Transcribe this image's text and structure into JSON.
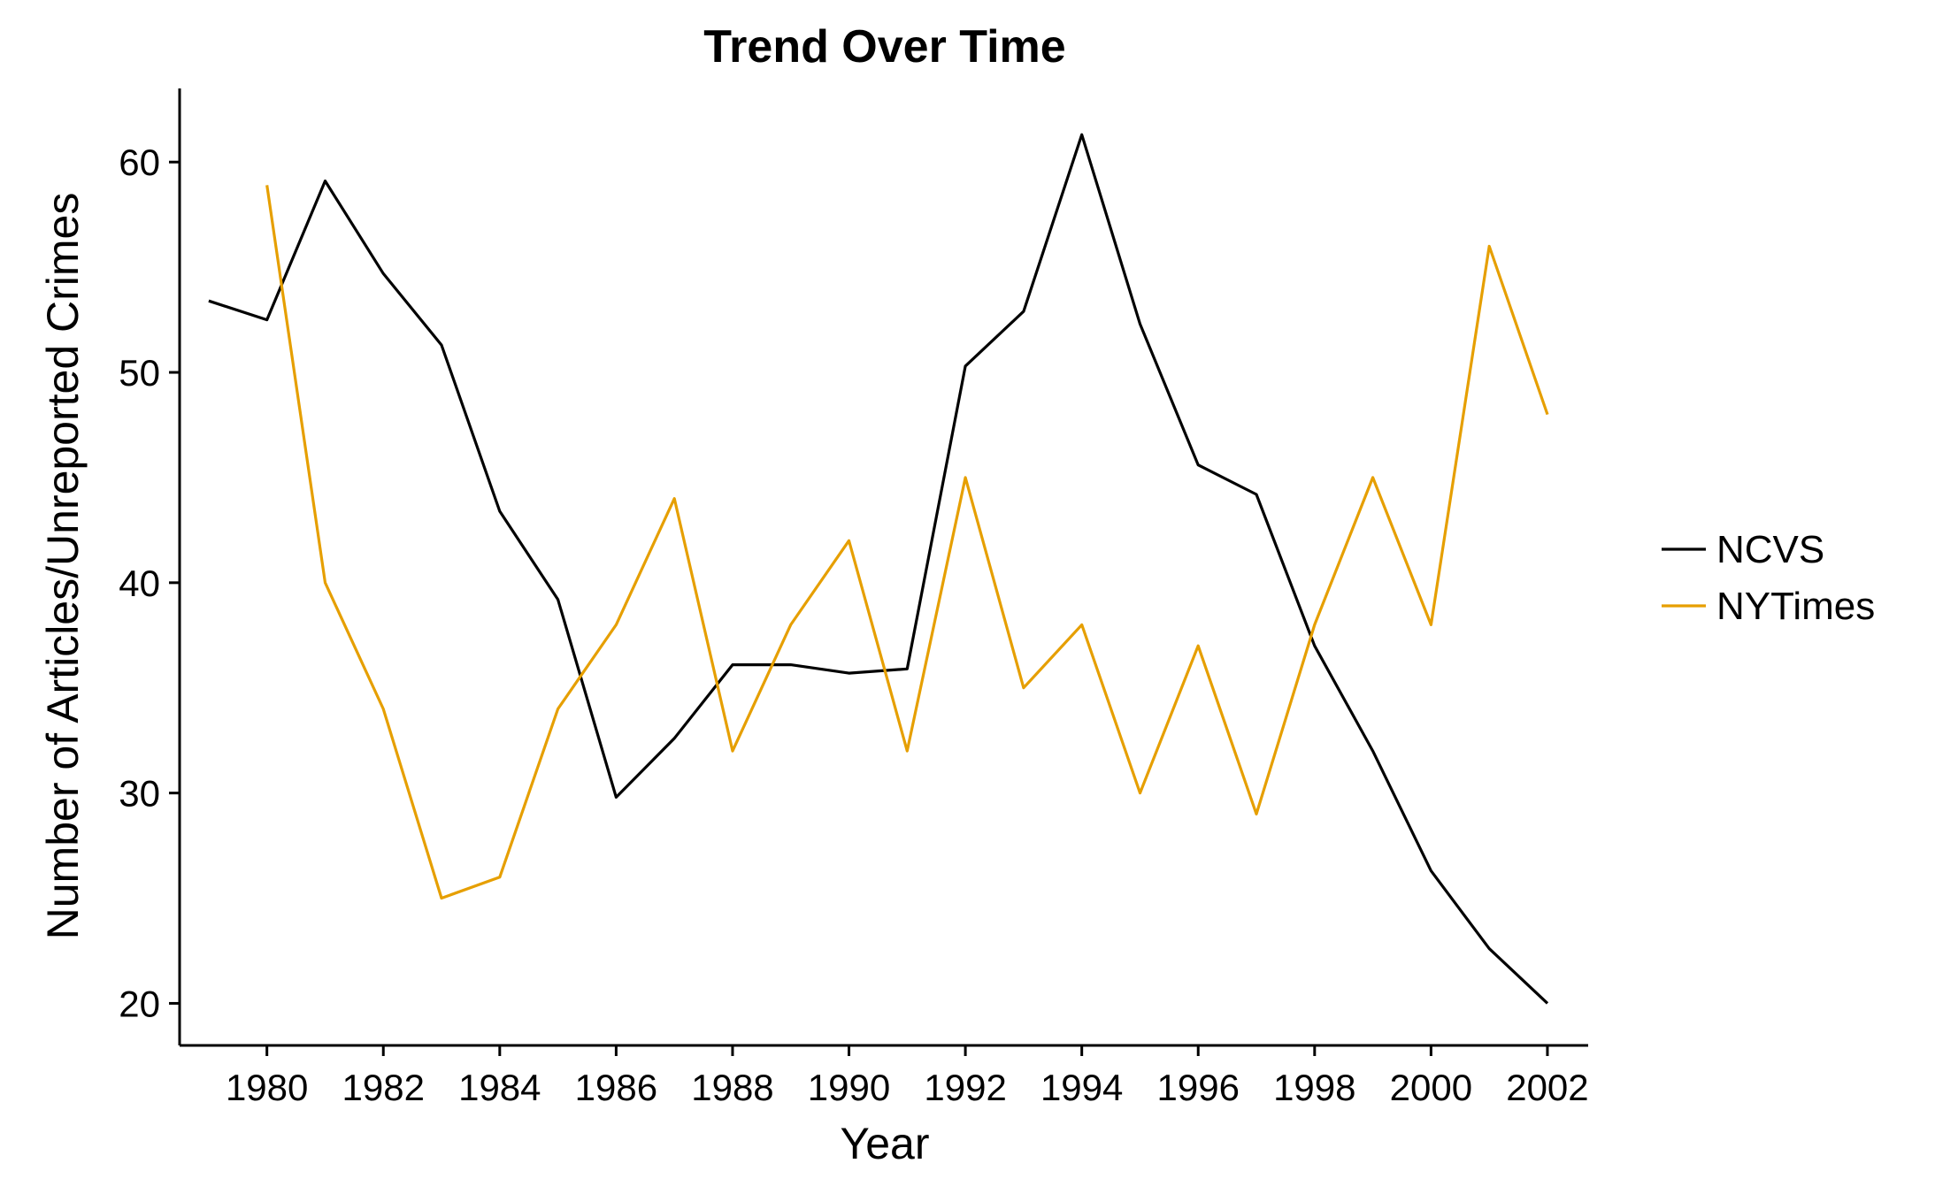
{
  "chart_data": {
    "type": "line",
    "title": "Trend Over Time",
    "xlabel": "Year",
    "ylabel": "Number of Articles/Unreported Crimes",
    "xlim": [
      1978.5,
      2002.7
    ],
    "ylim": [
      18.0,
      63.5
    ],
    "xticks": [
      1980,
      1982,
      1984,
      1986,
      1988,
      1990,
      1992,
      1994,
      1996,
      1998,
      2000,
      2002
    ],
    "yticks": [
      20,
      30,
      40,
      50,
      60
    ],
    "grid": false,
    "legend_position": "right",
    "series": [
      {
        "name": "NCVS",
        "color": "#000000",
        "x": [
          1979,
          1980,
          1981,
          1982,
          1983,
          1984,
          1985,
          1986,
          1987,
          1988,
          1989,
          1990,
          1991,
          1992,
          1993,
          1994,
          1995,
          1996,
          1997,
          1998,
          1999,
          2000,
          2001,
          2002
        ],
        "y": [
          53.4,
          52.5,
          59.1,
          54.7,
          51.3,
          43.4,
          39.2,
          29.8,
          32.6,
          36.1,
          36.1,
          35.7,
          35.9,
          50.3,
          52.9,
          61.3,
          52.3,
          45.6,
          44.2,
          37.0,
          32.0,
          26.3,
          22.6,
          20.0
        ]
      },
      {
        "name": "NYTimes",
        "color": "#E69F00",
        "x": [
          1980,
          1981,
          1982,
          1983,
          1984,
          1985,
          1986,
          1987,
          1988,
          1989,
          1990,
          1991,
          1992,
          1993,
          1994,
          1995,
          1996,
          1997,
          1998,
          1999,
          2000,
          2001,
          2002
        ],
        "y": [
          58.9,
          40.0,
          34.0,
          25.0,
          26.0,
          34.0,
          38.0,
          44.0,
          32.0,
          38.0,
          42.0,
          32.0,
          45.0,
          35.0,
          38.0,
          30.0,
          37.0,
          29.0,
          38.0,
          45.0,
          38.0,
          56.0,
          48.0
        ]
      }
    ]
  }
}
